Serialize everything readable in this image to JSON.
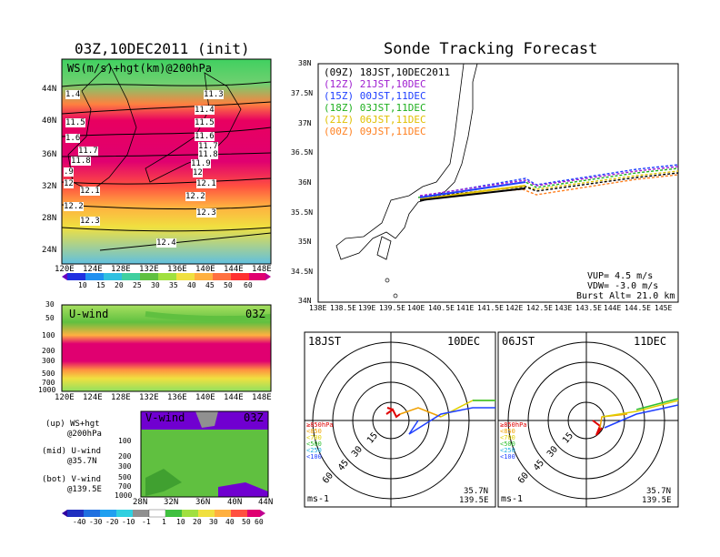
{
  "left": {
    "title": "03Z,10DEC2011 (init)",
    "map_label": "WS(m/s)+hgt(km)@200hPa",
    "lat_ticks": [
      "44N",
      "40N",
      "36N",
      "32N",
      "28N",
      "24N"
    ],
    "lon_ticks": [
      "120E",
      "124E",
      "128E",
      "132E",
      "136E",
      "140E",
      "144E",
      "148E"
    ],
    "ws_colorbar": [
      "10",
      "15",
      "20",
      "25",
      "30",
      "35",
      "40",
      "45",
      "50",
      "60"
    ],
    "hgt_labels": [
      "1.4",
      "11.3",
      "11.4",
      "11.5",
      "11.5",
      "1.6",
      "11.6",
      "11.7",
      "11.7",
      "11.8",
      "11.8",
      "11.9",
      ".9",
      "12",
      "12",
      "12.1",
      "12.1",
      "12.2",
      "12.2",
      "12.3",
      "12.3",
      "12.4"
    ],
    "uwind_title": "U-wind",
    "uwind_time": "03Z",
    "p_ticks": [
      "30",
      "50",
      "100",
      "200",
      "300",
      "500",
      "700",
      "1000"
    ],
    "vwind_title": "V-wind",
    "vwind_time": "03Z",
    "vwind_lat_ticks": [
      "28N",
      "32N",
      "36N",
      "40N",
      "44N"
    ],
    "legend": [
      "(up) WS+hgt",
      "@200hPa",
      "(mid) U-wind",
      "@35.7N",
      "(bot) V-wind",
      "@139.5E"
    ],
    "wind_colorbar": [
      "-40",
      "-30",
      "-20",
      "-10",
      "-1",
      "1",
      "10",
      "20",
      "30",
      "40",
      "50",
      "60"
    ]
  },
  "right": {
    "title": "Sonde Tracking Forecast",
    "lat_ticks": [
      "38N",
      "37.5N",
      "37N",
      "36.5N",
      "36N",
      "35.5N",
      "35N",
      "34.5N",
      "34N"
    ],
    "lon_ticks": [
      "138E",
      "138.5E",
      "139E",
      "139.5E",
      "140E",
      "140.5E",
      "141E",
      "141.5E",
      "142E",
      "142.5E",
      "143E",
      "143.5E",
      "144E",
      "144.5E",
      "145E"
    ],
    "runs": [
      {
        "utc": "(09Z)",
        "jst": "18JST,10DEC2011",
        "color": "#000000"
      },
      {
        "utc": "(12Z)",
        "jst": "21JST,10DEC",
        "color": "#a020d0"
      },
      {
        "utc": "(15Z)",
        "jst": "00JST,11DEC",
        "color": "#2040ff"
      },
      {
        "utc": "(18Z)",
        "jst": "03JST,11DEC",
        "color": "#20b020"
      },
      {
        "utc": "(21Z)",
        "jst": "06JST,11DEC",
        "color": "#e0c000"
      },
      {
        "utc": "(00Z)",
        "jst": "09JST,11DEC",
        "color": "#ff8020"
      }
    ],
    "vup": "VUP= 4.5 m/s",
    "vdw": "VDW= -3.0 m/s",
    "burst": "Burst Alt= 21.0 km"
  },
  "hodo": [
    {
      "time": "18JST",
      "date": "10DEC",
      "rings": [
        "15",
        "30",
        "45",
        "60"
      ],
      "unit": "ms-1",
      "lat": "35.7N",
      "lon": "139.5E",
      "levels": [
        "≥850hPa",
        "<850",
        "<700",
        "<500",
        "<250",
        "<100"
      ]
    },
    {
      "time": "06JST",
      "date": "11DEC",
      "rings": [
        "15",
        "30",
        "45",
        "60"
      ],
      "unit": "ms-1",
      "lat": "35.7N",
      "lon": "139.5E",
      "levels": [
        "≥850hPa",
        "<850",
        "<700",
        "<500",
        "<250",
        "<100"
      ]
    }
  ],
  "colors": {
    "low": "#4a00d0",
    "mid": "#80e040",
    "high": "#e00070",
    "track_black": "#000000"
  }
}
